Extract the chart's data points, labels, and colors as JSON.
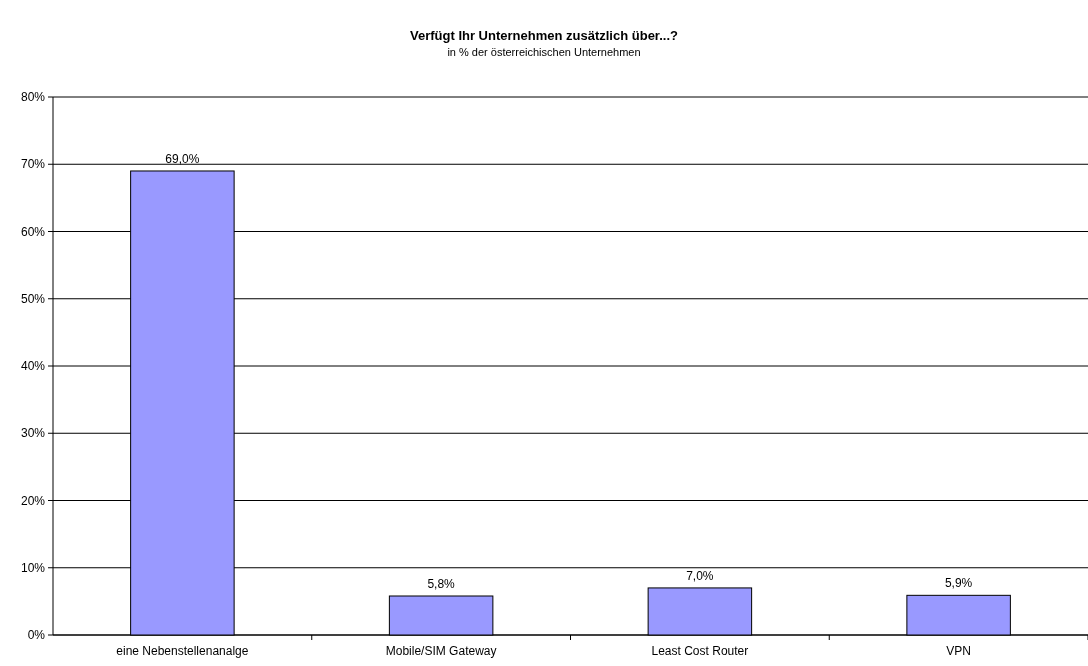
{
  "chart_data": {
    "type": "bar",
    "title": "Verfügt Ihr Unternehmen zusätzlich über...?",
    "subtitle": "in % der österreichischen Unternehmen",
    "categories": [
      "eine Nebenstellenanalge",
      "Mobile/SIM Gateway",
      "Least Cost Router",
      "VPN"
    ],
    "values": [
      69.0,
      5.8,
      7.0,
      5.9
    ],
    "value_labels": [
      "69,0%",
      "5,8%",
      "7,0%",
      "5,9%"
    ],
    "color": "#9999ff",
    "ylim": [
      0,
      80
    ],
    "yticks": [
      {
        "value": 0,
        "label": "0%"
      },
      {
        "value": 10,
        "label": "10%"
      },
      {
        "value": 20,
        "label": "20%"
      },
      {
        "value": 30,
        "label": "30%"
      },
      {
        "value": 40,
        "label": "40%"
      },
      {
        "value": 50,
        "label": "50%"
      },
      {
        "value": 60,
        "label": "60%"
      },
      {
        "value": 70,
        "label": "70%"
      },
      {
        "value": 80,
        "label": "80%"
      }
    ],
    "grid": "y"
  }
}
